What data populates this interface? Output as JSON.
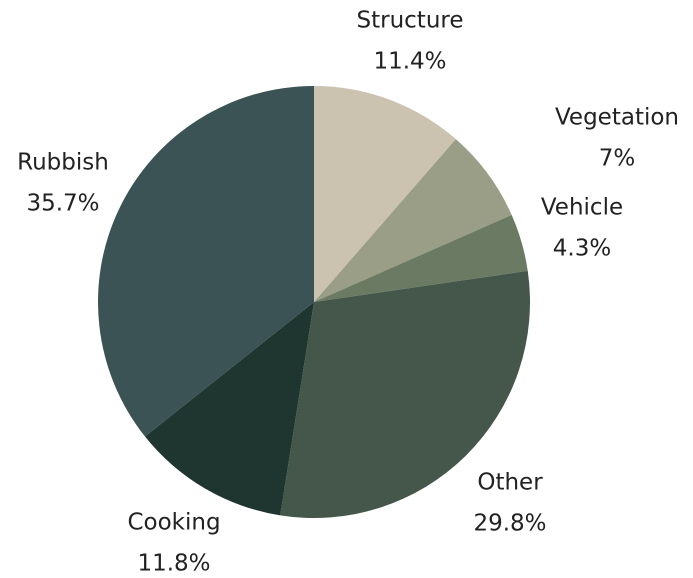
{
  "chart_data": {
    "type": "pie",
    "categories": [
      "Structure",
      "Vegetation",
      "Vehicle",
      "Other",
      "Cooking",
      "Rubbish"
    ],
    "values": [
      11.4,
      7,
      4.3,
      29.8,
      11.8,
      35.7
    ],
    "value_labels": [
      "11.4%",
      "7%",
      "4.3%",
      "29.8%",
      "11.8%",
      "35.7%"
    ],
    "colors": [
      "#cbc3b0",
      "#9a9e87",
      "#6b7a63",
      "#44574a",
      "#1e3530",
      "#3b5355"
    ]
  }
}
